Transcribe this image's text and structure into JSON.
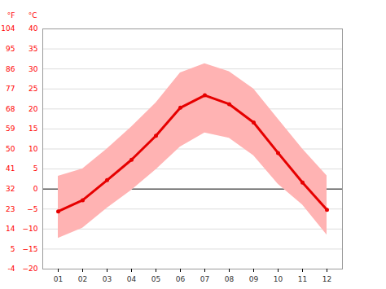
{
  "chart_data": {
    "type": "line",
    "categories": [
      "01",
      "02",
      "03",
      "04",
      "05",
      "06",
      "07",
      "08",
      "09",
      "10",
      "11",
      "12"
    ],
    "series": [
      {
        "values": [
          -5.6,
          -2.8,
          2.2,
          7.3,
          13.3,
          20.3,
          23.4,
          21.2,
          16.6,
          9.0,
          1.6,
          -5.2
        ],
        "color": "#e60000",
        "marker": "circle"
      }
    ],
    "band": {
      "min": [
        -12.3,
        -9.8,
        -4.8,
        -0.3,
        4.8,
        10.5,
        14.0,
        12.7,
        8.3,
        1.2,
        -4.0,
        -11.5
      ],
      "max": [
        3.2,
        5.0,
        10.0,
        15.5,
        21.5,
        29.0,
        31.3,
        29.3,
        25.0,
        17.5,
        10.0,
        3.3
      ],
      "color": "#ffb3b3"
    },
    "ylabel": "°C",
    "ylim": [
      -20,
      40
    ],
    "yticks": [
      -20,
      -15,
      -10,
      -5,
      0,
      5,
      10,
      15,
      20,
      25,
      30,
      35,
      40
    ],
    "y2label": "°F",
    "y2lim": [
      -4,
      104
    ],
    "y2ticks": [
      -4,
      5,
      14,
      23,
      32,
      41,
      50,
      59,
      68,
      77,
      86,
      95,
      104
    ],
    "grid": true
  }
}
